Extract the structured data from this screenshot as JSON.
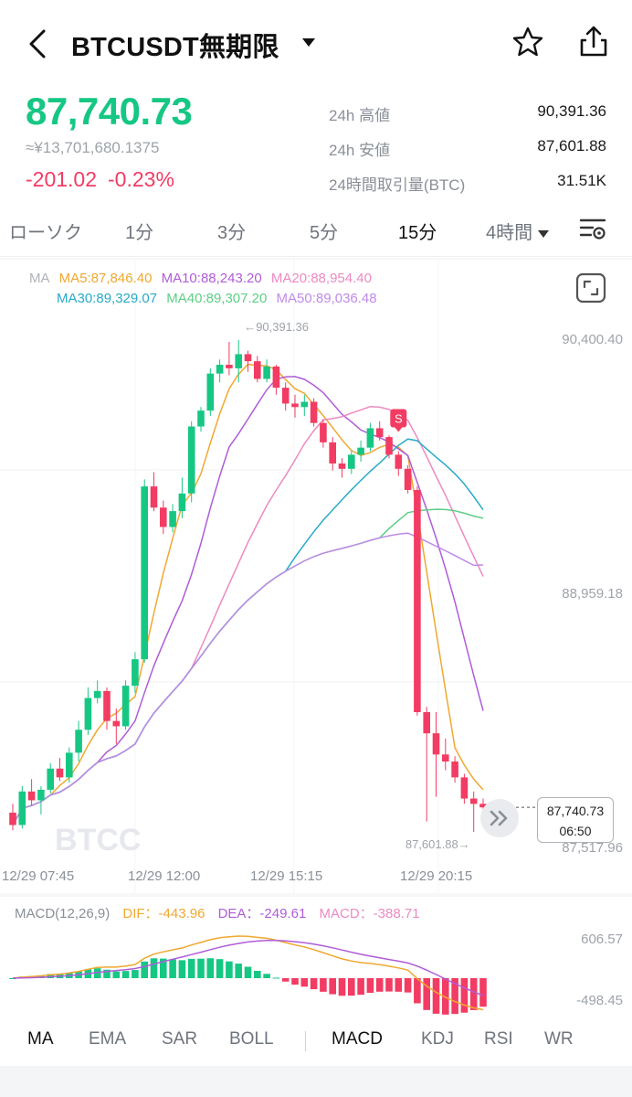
{
  "header": {
    "title": "BTCUSDT無期限",
    "icons": [
      "back-arrow-icon",
      "caret-down-icon",
      "star-icon",
      "share-icon"
    ]
  },
  "ticker": {
    "price": "87,740.73",
    "fiat": "≈¥13,701,680.1375",
    "change_abs": "-201.02",
    "change_pct": "-0.23%",
    "stats": [
      {
        "label": "24h 高値",
        "value": "90,391.36"
      },
      {
        "label": "24h 安値",
        "value": "87,601.88"
      },
      {
        "label": "24時間取引量(BTC)",
        "value": "31.51K"
      }
    ]
  },
  "tabs": [
    "ローソク",
    "1分",
    "3分",
    "5分",
    "15分",
    "4時間"
  ],
  "active_tab": "15分",
  "ma_legend": {
    "ma": "MA",
    "ma5": "MA5:87,846.40",
    "ma10": "MA10:88,243.20",
    "ma20": "MA20:88,954.40",
    "ma30": "MA30:89,329.07",
    "ma40": "MA40:89,307.20",
    "ma50": "MA50:89,036.48"
  },
  "chart_data": {
    "type": "candlestick",
    "y_axis_labels": [
      "90,400.40",
      "88,959.18",
      "87,517.96"
    ],
    "x_axis_labels": [
      "12/29 07:45",
      "12/29 12:00",
      "12/29 15:15",
      "12/29 20:15"
    ],
    "high_marker": "←90,391.36",
    "low_marker": "87,601.88→",
    "current_price": "87,740.73",
    "countdown": "06:50",
    "signal_label": "S",
    "watermark": "BTCC",
    "ohlc": [
      [
        87710,
        87760,
        87610,
        87640
      ],
      [
        87640,
        87860,
        87620,
        87830
      ],
      [
        87830,
        87900,
        87750,
        87780
      ],
      [
        87780,
        87860,
        87700,
        87840
      ],
      [
        87840,
        87990,
        87820,
        87960
      ],
      [
        87960,
        88020,
        87890,
        87910
      ],
      [
        87910,
        88080,
        87880,
        88050
      ],
      [
        88050,
        88230,
        88000,
        88180
      ],
      [
        88180,
        88420,
        88150,
        88360
      ],
      [
        88360,
        88460,
        88330,
        88400
      ],
      [
        88400,
        88420,
        88180,
        88230
      ],
      [
        88230,
        88300,
        88100,
        88200
      ],
      [
        88200,
        88460,
        88180,
        88430
      ],
      [
        88430,
        88620,
        88390,
        88580
      ],
      [
        88580,
        89600,
        88560,
        89560
      ],
      [
        89560,
        89640,
        89420,
        89440
      ],
      [
        89440,
        89480,
        89290,
        89330
      ],
      [
        89330,
        89460,
        89300,
        89420
      ],
      [
        89420,
        89610,
        89380,
        89520
      ],
      [
        89520,
        89930,
        89470,
        89900
      ],
      [
        89900,
        90010,
        89870,
        89990
      ],
      [
        89990,
        90230,
        89960,
        90200
      ],
      [
        90200,
        90280,
        90150,
        90250
      ],
      [
        90250,
        90380,
        90190,
        90230
      ],
      [
        90230,
        90391,
        90150,
        90310
      ],
      [
        90310,
        90330,
        90210,
        90270
      ],
      [
        90270,
        90300,
        90150,
        90170
      ],
      [
        90170,
        90280,
        90150,
        90240
      ],
      [
        90240,
        90250,
        90080,
        90120
      ],
      [
        90120,
        90150,
        89990,
        90030
      ],
      [
        90030,
        90080,
        89950,
        90010
      ],
      [
        90010,
        90080,
        89960,
        90040
      ],
      [
        90040,
        90060,
        89900,
        89920
      ],
      [
        89920,
        89940,
        89780,
        89810
      ],
      [
        89810,
        89840,
        89650,
        89690
      ],
      [
        89690,
        89720,
        89610,
        89660
      ],
      [
        89660,
        89760,
        89630,
        89740
      ],
      [
        89740,
        89820,
        89700,
        89780
      ],
      [
        89780,
        89920,
        89760,
        89890
      ],
      [
        89890,
        89930,
        89820,
        89840
      ],
      [
        89840,
        89850,
        89720,
        89740
      ],
      [
        89740,
        89760,
        89620,
        89660
      ],
      [
        89660,
        89680,
        89520,
        89540
      ],
      [
        89540,
        89560,
        88260,
        88280
      ],
      [
        88280,
        88310,
        87660,
        88160
      ],
      [
        88160,
        88280,
        87800,
        88040
      ],
      [
        88040,
        88130,
        87950,
        88000
      ],
      [
        88000,
        88030,
        87880,
        87910
      ],
      [
        87910,
        87930,
        87760,
        87790
      ],
      [
        87790,
        87830,
        87601,
        87760
      ],
      [
        87760,
        87790,
        87700,
        87740
      ]
    ],
    "series": [
      {
        "name": "MA5"
      },
      {
        "name": "MA10"
      },
      {
        "name": "MA20"
      },
      {
        "name": "MA30"
      },
      {
        "name": "MA40"
      },
      {
        "name": "MA50"
      }
    ]
  },
  "macd_legend": {
    "params": "MACD(12,26,9)",
    "dif": "DIF：-443.96",
    "dea": "DEA：-249.61",
    "macd": "MACD：-388.71"
  },
  "macd_axis_labels": [
    "606.57",
    "-498.45"
  ],
  "indicators": [
    "MA",
    "EMA",
    "SAR",
    "BOLL",
    "MACD",
    "KDJ",
    "RSI",
    "WR"
  ],
  "colors": {
    "up": "#16c784",
    "down": "#f23c63",
    "ma5": "#f0a830",
    "ma10": "#b05cd8",
    "ma20": "#ec8ac2",
    "ma30": "#28aac8",
    "ma40": "#5ccf86",
    "ma50": "#c08ae8"
  }
}
